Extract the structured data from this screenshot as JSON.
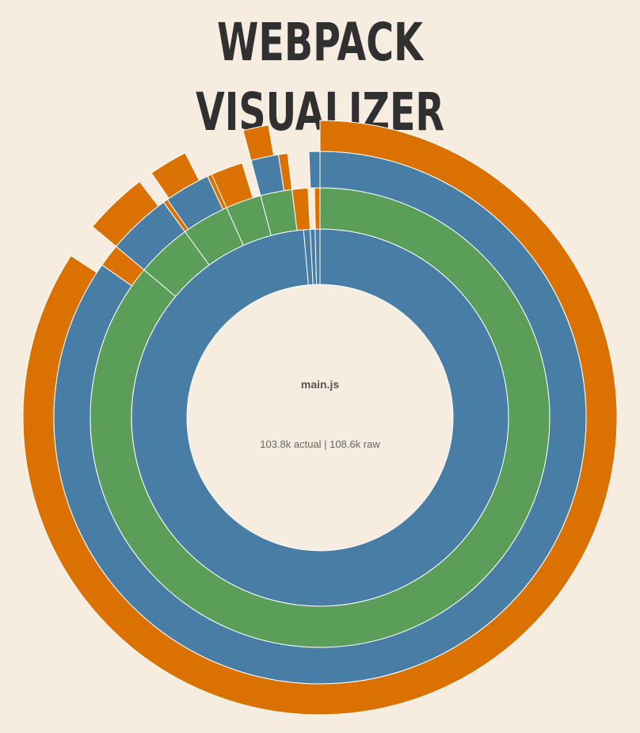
{
  "header": {
    "title": "WEBPACK VISUALIZER"
  },
  "chart_data": {
    "type": "sunburst",
    "center": {
      "name": "main.js",
      "details": "103.8k actual | 108.6k raw"
    },
    "colors": {
      "level1": "#487ea5",
      "level2": "#5a9e5a",
      "level3": "#487ea5",
      "level4": "#db7100",
      "background": "#f6ede0"
    },
    "rings": [
      {
        "level": 1,
        "color": "#487ea5",
        "segments": [
          {
            "start_deg": 0,
            "end_deg": 355
          },
          {
            "start_deg": 355,
            "end_deg": 357
          },
          {
            "start_deg": 357,
            "end_deg": 358.5
          },
          {
            "start_deg": 358.5,
            "end_deg": 360
          }
        ]
      },
      {
        "level": 2,
        "color": "#5a9e5a",
        "segments": [
          {
            "start_deg": 0,
            "end_deg": 310
          },
          {
            "start_deg": 310,
            "end_deg": 324
          },
          {
            "start_deg": 324,
            "end_deg": 336
          },
          {
            "start_deg": 336,
            "end_deg": 345
          },
          {
            "start_deg": 345,
            "end_deg": 353
          }
        ]
      },
      {
        "level": 2,
        "color": "#db7100",
        "segments": [
          {
            "start_deg": 353,
            "end_deg": 357
          },
          {
            "start_deg": 358.6,
            "end_deg": 360
          }
        ]
      },
      {
        "level": 3,
        "color": "#487ea5",
        "segments": [
          {
            "start_deg": 0,
            "end_deg": 305
          },
          {
            "start_deg": 310,
            "end_deg": 324
          },
          {
            "start_deg": 324,
            "end_deg": 335
          },
          {
            "start_deg": 345,
            "end_deg": 351
          },
          {
            "start_deg": 357.6,
            "end_deg": 360
          }
        ]
      },
      {
        "level": 3,
        "color": "#db7100",
        "segments": [
          {
            "start_deg": 305,
            "end_deg": 310
          },
          {
            "start_deg": 324,
            "end_deg": 325
          },
          {
            "start_deg": 335,
            "end_deg": 336
          },
          {
            "start_deg": 336,
            "end_deg": 343
          },
          {
            "start_deg": 351,
            "end_deg": 353
          }
        ]
      },
      {
        "level": 4,
        "color": "#db7100",
        "segments": [
          {
            "start_deg": 0,
            "end_deg": 303
          },
          {
            "start_deg": 310,
            "end_deg": 322.6
          },
          {
            "start_deg": 325.4,
            "end_deg": 333
          },
          {
            "start_deg": 345,
            "end_deg": 350
          }
        ]
      }
    ]
  }
}
